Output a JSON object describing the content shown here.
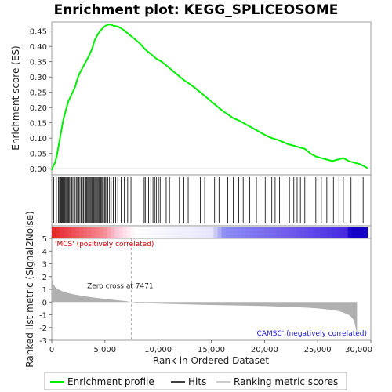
{
  "title": "Enrichment plot: KEGG_SPLICEOSOME",
  "chart_data": [
    {
      "type": "line",
      "panel": "enrichment",
      "ylabel": "Enrichment score (ES)",
      "ylim": [
        -0.02,
        0.48
      ],
      "yticks": [
        0.0,
        0.05,
        0.1,
        0.15,
        0.2,
        0.25,
        0.3,
        0.35,
        0.4,
        0.45
      ],
      "ytick_labels": [
        "0.00",
        "0.05",
        "0.10",
        "0.15",
        "0.20",
        "0.25",
        "0.30",
        "0.35",
        "0.40",
        "0.45"
      ],
      "xlim": [
        0,
        29000
      ],
      "line_color": "#00ee00",
      "series": [
        {
          "name": "Enrichment profile",
          "x": [
            0,
            150,
            300,
            450,
            600,
            750,
            900,
            1050,
            1200,
            1350,
            1500,
            1700,
            1900,
            2100,
            2300,
            2500,
            2800,
            3100,
            3400,
            3700,
            3900,
            4200,
            4500,
            4800,
            5000,
            5300,
            5600,
            6000,
            6500,
            7000,
            7500,
            8000,
            8500,
            9000,
            9500,
            10000,
            10500,
            11000,
            11500,
            12000,
            12500,
            13000,
            13500,
            14000,
            14500,
            15000,
            15500,
            16000,
            16500,
            17000,
            17500,
            18000,
            18500,
            19000,
            19500,
            20000,
            20500,
            21000,
            21500,
            22000,
            22500,
            23000,
            23500,
            24000,
            24500,
            25000,
            25500,
            26000,
            26500,
            27000,
            27500,
            28000,
            28300,
            28700
          ],
          "y": [
            -0.005,
            0.01,
            0.02,
            0.04,
            0.07,
            0.1,
            0.13,
            0.16,
            0.18,
            0.2,
            0.22,
            0.235,
            0.25,
            0.265,
            0.29,
            0.31,
            0.33,
            0.35,
            0.37,
            0.395,
            0.42,
            0.44,
            0.455,
            0.465,
            0.47,
            0.472,
            0.468,
            0.465,
            0.455,
            0.44,
            0.425,
            0.41,
            0.39,
            0.375,
            0.36,
            0.35,
            0.335,
            0.32,
            0.305,
            0.29,
            0.278,
            0.265,
            0.25,
            0.235,
            0.22,
            0.205,
            0.19,
            0.178,
            0.165,
            0.158,
            0.148,
            0.138,
            0.128,
            0.118,
            0.108,
            0.1,
            0.095,
            0.088,
            0.08,
            0.075,
            0.07,
            0.065,
            0.05,
            0.04,
            0.035,
            0.03,
            0.025,
            0.03,
            0.035,
            0.025,
            0.02,
            0.015,
            0.01,
            0.002
          ]
        }
      ]
    },
    {
      "type": "scatter",
      "panel": "hits",
      "series": [
        {
          "name": "Hits",
          "x": [
            180,
            420,
            600,
            700,
            780,
            850,
            920,
            990,
            1060,
            1130,
            1200,
            1280,
            1360,
            1450,
            1540,
            1620,
            1720,
            1820,
            1920,
            2020,
            2120,
            2230,
            2340,
            2450,
            2560,
            2670,
            2780,
            2890,
            3000,
            3090,
            3180,
            3260,
            3340,
            3420,
            3500,
            3580,
            3660,
            3740,
            3820,
            3900,
            3980,
            4060,
            4140,
            4220,
            4300,
            4380,
            4460,
            4540,
            4620,
            4700,
            4800,
            4900,
            5000,
            5100,
            5250,
            5400,
            5600,
            5800,
            6000,
            6300,
            6600,
            6900,
            7200,
            8400,
            8500,
            8650,
            8800,
            9000,
            9200,
            9350,
            9500,
            9700,
            9850,
            10400,
            10700,
            11600,
            12000,
            12400,
            13500,
            13900,
            14800,
            15200,
            16000,
            16500,
            17000,
            17400,
            18000,
            18600,
            19200,
            19400,
            20000,
            20300,
            20700,
            21200,
            21600,
            22000,
            22300,
            22600,
            23000,
            24000,
            24200,
            24500,
            25000,
            25600,
            26100,
            26500,
            27200,
            28300
          ]
        }
      ]
    },
    {
      "type": "area",
      "panel": "ranked-metric",
      "ylabel": "Ranked list metric (Signal2Noise)",
      "xlabel": "Rank in Ordered Dataset",
      "ylim": [
        -3,
        5
      ],
      "yticks": [
        -3,
        -2,
        -1,
        0,
        1,
        2,
        3,
        4,
        5
      ],
      "ytick_labels": [
        "-3",
        "-2",
        "-1",
        "0",
        "1",
        "2",
        "3",
        "4",
        "5"
      ],
      "xlim": [
        0,
        30000
      ],
      "xticks": [
        0,
        5000,
        10000,
        15000,
        20000,
        25000,
        30000
      ],
      "xtick_labels": [
        "0",
        "5,000",
        "10,000",
        "15,000",
        "20,000",
        "25,000",
        "30,000"
      ],
      "x": [
        0,
        100,
        300,
        600,
        1000,
        1500,
        2000,
        3000,
        4000,
        5000,
        6000,
        7000,
        7471,
        8000,
        10000,
        12000,
        14000,
        16000,
        18000,
        20000,
        22000,
        24000,
        25000,
        26000,
        27000,
        27500,
        28000,
        28300,
        28500,
        28700
      ],
      "values": [
        1.9,
        1.5,
        1.2,
        1.0,
        0.85,
        0.72,
        0.62,
        0.47,
        0.35,
        0.25,
        0.15,
        0.07,
        0.0,
        -0.05,
        -0.12,
        -0.17,
        -0.21,
        -0.25,
        -0.28,
        -0.32,
        -0.37,
        -0.44,
        -0.5,
        -0.58,
        -0.72,
        -0.85,
        -1.05,
        -1.3,
        -1.7,
        -2.6
      ],
      "annotations": {
        "zero_cross": "Zero cross at 7471",
        "zero_cross_x": 7471,
        "positive": "'MCS' (positively correlated)",
        "negative": "'CAMSC' (negatively correlated)"
      }
    }
  ],
  "legend": {
    "placement": "bottom",
    "items": [
      {
        "label": "Enrichment profile",
        "color": "#00ee00"
      },
      {
        "label": "Hits",
        "color": "#000000"
      },
      {
        "label": "Ranking metric scores",
        "color": "#bbbbbb"
      }
    ]
  },
  "colors": {
    "positive_text": "#cc0000",
    "negative_text": "#1a1acc",
    "metric_fill": "#b0b0b0"
  }
}
